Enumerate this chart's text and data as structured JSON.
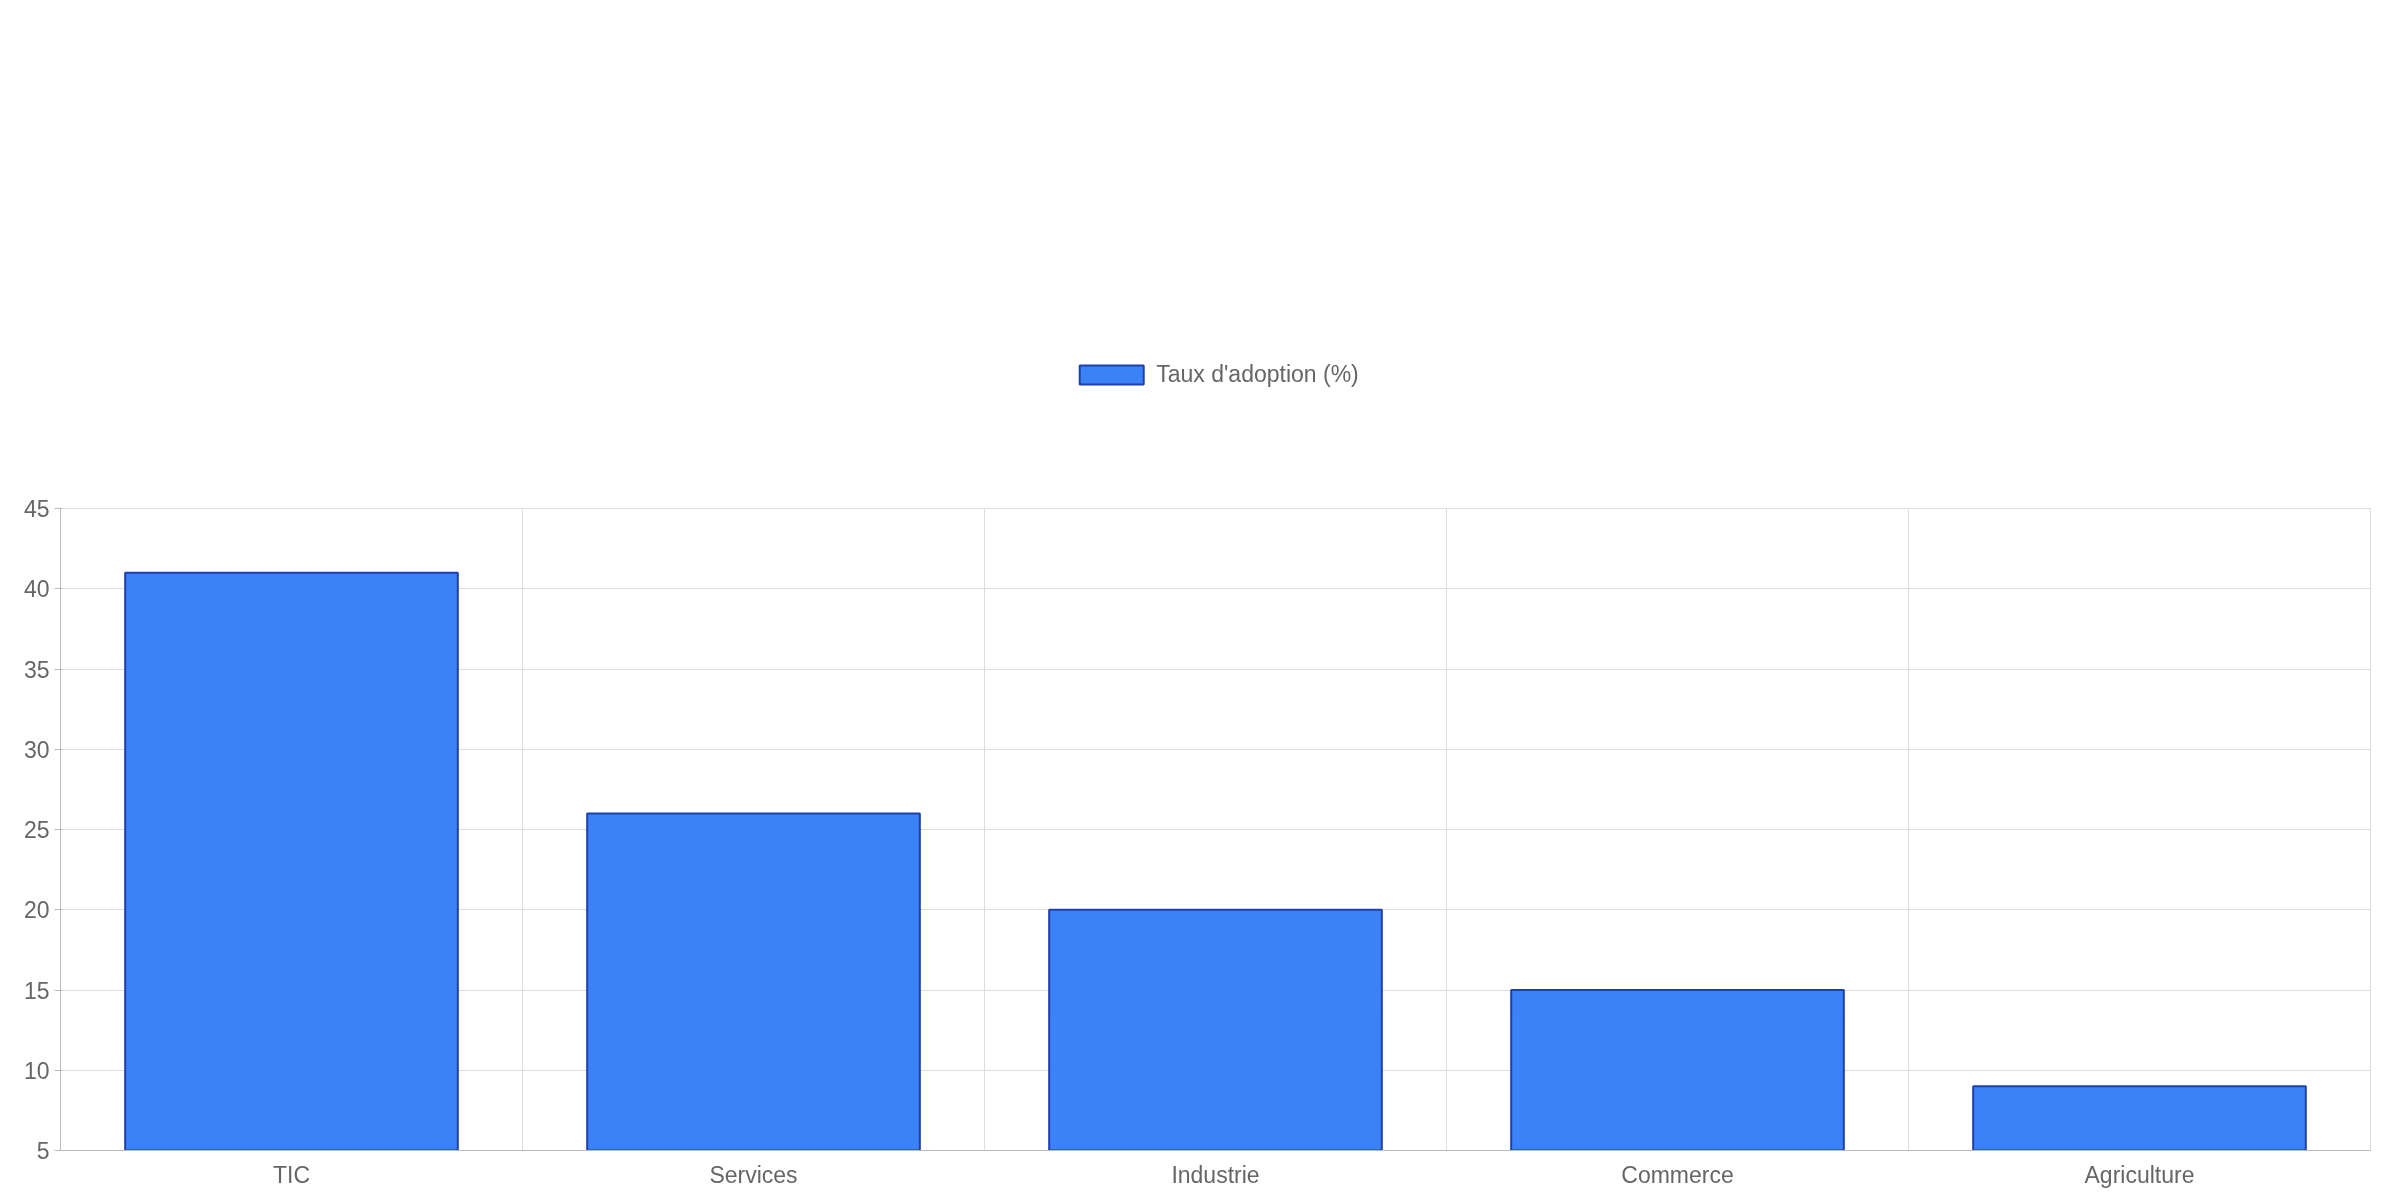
{
  "chart_data": {
    "type": "bar",
    "categories": [
      "TIC",
      "Services",
      "Industrie",
      "Commerce",
      "Agriculture"
    ],
    "series": [
      {
        "name": "Taux d'adoption (%)",
        "color": "#3b82f6",
        "values": [
          41,
          26,
          20,
          15,
          9
        ]
      }
    ],
    "ylim": [
      5,
      45
    ],
    "yticks": [
      5,
      10,
      15,
      20,
      25,
      30,
      35,
      40,
      45
    ],
    "grid": true,
    "legend": "top"
  }
}
